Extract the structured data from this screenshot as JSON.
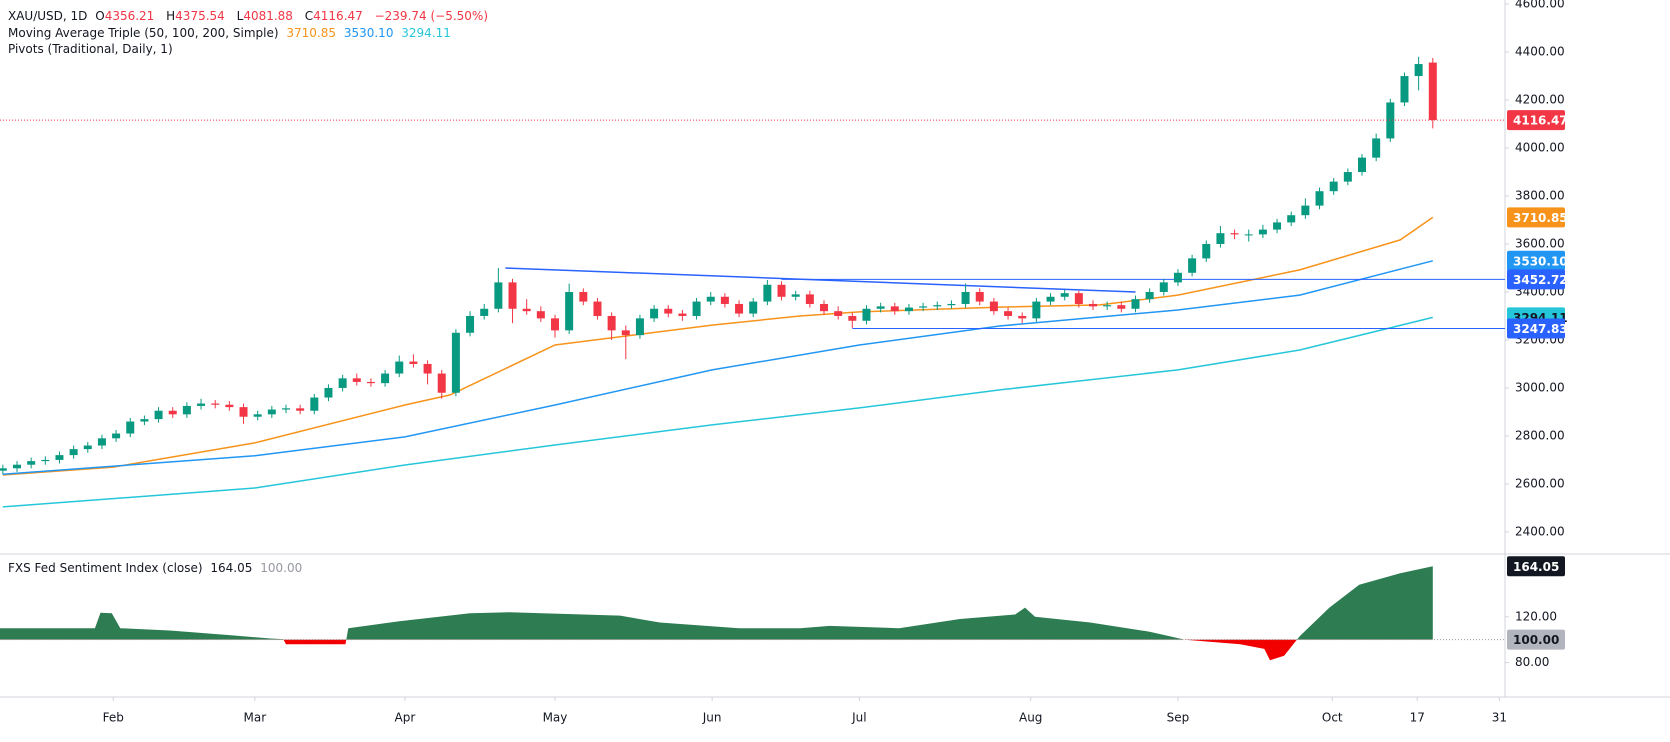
{
  "header": {
    "symbol": "XAU/USD, 1D",
    "ohlc": [
      {
        "label": "O",
        "value": "4356.21"
      },
      {
        "label": "H",
        "value": "4375.54"
      },
      {
        "label": "L",
        "value": "4081.88"
      },
      {
        "label": "C",
        "value": "4116.47"
      }
    ],
    "change": "−239.74 (−5.50%)",
    "ma_title": "Moving Average Triple (50, 100, 200, Simple)",
    "pivots_title": "Pivots (Traditional, Daily, 1)"
  },
  "chart_data": [
    {
      "type": "candlestick",
      "up_color": "#089981",
      "down_color": "#f23645",
      "xlim": [
        -0.2,
        106.1
      ],
      "xticks": [
        {
          "value": 7.8,
          "label": "Feb"
        },
        {
          "value": 17.8,
          "label": "Mar"
        },
        {
          "value": 28.4,
          "label": "Apr"
        },
        {
          "value": 39,
          "label": "May"
        },
        {
          "value": 50.1,
          "label": "Jun"
        },
        {
          "value": 60.5,
          "label": "Jul"
        },
        {
          "value": 72.6,
          "label": "Aug"
        },
        {
          "value": 83,
          "label": "Sep"
        },
        {
          "value": 93.9,
          "label": "Oct"
        },
        {
          "value": 99.9,
          "label": "17"
        },
        {
          "value": 105.7,
          "label": "31"
        }
      ],
      "ylim": [
        2312,
        4617
      ],
      "yticks": [
        {
          "value": 2400,
          "label": "2400.00"
        },
        {
          "value": 2600,
          "label": "2600.00"
        },
        {
          "value": 2800,
          "label": "2800.00"
        },
        {
          "value": 3000,
          "label": "3000.00"
        },
        {
          "value": 3200,
          "label": "3200.00"
        },
        {
          "value": 3400,
          "label": "3400.00"
        },
        {
          "value": 3600,
          "label": "3600.00"
        },
        {
          "value": 3800,
          "label": "3800.00"
        },
        {
          "value": 4000,
          "label": "4000.00"
        },
        {
          "value": 4200,
          "label": "4200.00"
        },
        {
          "value": 4400,
          "label": "4400.00"
        },
        {
          "value": 4600,
          "label": "4600.00"
        }
      ],
      "candles": [
        [
          2655,
          2680,
          2640,
          2665
        ],
        [
          2665,
          2695,
          2650,
          2680
        ],
        [
          2680,
          2710,
          2665,
          2695
        ],
        [
          2695,
          2715,
          2680,
          2700
        ],
        [
          2700,
          2735,
          2685,
          2720
        ],
        [
          2720,
          2760,
          2705,
          2745
        ],
        [
          2745,
          2775,
          2730,
          2760
        ],
        [
          2760,
          2805,
          2745,
          2790
        ],
        [
          2790,
          2825,
          2775,
          2810
        ],
        [
          2810,
          2875,
          2795,
          2860
        ],
        [
          2860,
          2885,
          2845,
          2870
        ],
        [
          2870,
          2920,
          2855,
          2905
        ],
        [
          2905,
          2920,
          2875,
          2890
        ],
        [
          2890,
          2940,
          2875,
          2925
        ],
        [
          2925,
          2955,
          2910,
          2935
        ],
        [
          2935,
          2950,
          2915,
          2930
        ],
        [
          2930,
          2945,
          2905,
          2920
        ],
        [
          2920,
          2935,
          2850,
          2880
        ],
        [
          2880,
          2905,
          2865,
          2890
        ],
        [
          2890,
          2925,
          2875,
          2910
        ],
        [
          2910,
          2930,
          2895,
          2915
        ],
        [
          2915,
          2930,
          2890,
          2905
        ],
        [
          2905,
          2975,
          2890,
          2960
        ],
        [
          2960,
          3015,
          2945,
          3000
        ],
        [
          3000,
          3055,
          2985,
          3040
        ],
        [
          3040,
          3060,
          3010,
          3025
        ],
        [
          3025,
          3040,
          3005,
          3020
        ],
        [
          3020,
          3075,
          3005,
          3060
        ],
        [
          3060,
          3135,
          3045,
          3110
        ],
        [
          3110,
          3140,
          3085,
          3100
        ],
        [
          3100,
          3115,
          3015,
          3060
        ],
        [
          3060,
          3075,
          2955,
          2980
        ],
        [
          2980,
          3245,
          2965,
          3230
        ],
        [
          3230,
          3320,
          3215,
          3300
        ],
        [
          3300,
          3350,
          3285,
          3330
        ],
        [
          3330,
          3500,
          3315,
          3440
        ],
        [
          3440,
          3455,
          3270,
          3330
        ],
        [
          3330,
          3370,
          3305,
          3320
        ],
        [
          3320,
          3340,
          3275,
          3290
        ],
        [
          3290,
          3305,
          3210,
          3240
        ],
        [
          3240,
          3435,
          3225,
          3400
        ],
        [
          3400,
          3415,
          3345,
          3360
        ],
        [
          3360,
          3375,
          3285,
          3300
        ],
        [
          3300,
          3315,
          3200,
          3240
        ],
        [
          3240,
          3260,
          3120,
          3220
        ],
        [
          3220,
          3305,
          3205,
          3290
        ],
        [
          3290,
          3345,
          3275,
          3330
        ],
        [
          3330,
          3345,
          3295,
          3310
        ],
        [
          3310,
          3325,
          3280,
          3300
        ],
        [
          3300,
          3375,
          3285,
          3360
        ],
        [
          3360,
          3400,
          3345,
          3380
        ],
        [
          3380,
          3395,
          3335,
          3350
        ],
        [
          3350,
          3365,
          3295,
          3310
        ],
        [
          3310,
          3375,
          3295,
          3360
        ],
        [
          3360,
          3450,
          3345,
          3430
        ],
        [
          3430,
          3445,
          3365,
          3380
        ],
        [
          3380,
          3405,
          3365,
          3390
        ],
        [
          3390,
          3405,
          3335,
          3350
        ],
        [
          3350,
          3365,
          3305,
          3320
        ],
        [
          3320,
          3340,
          3285,
          3300
        ],
        [
          3300,
          3315,
          3250,
          3280
        ],
        [
          3280,
          3345,
          3265,
          3330
        ],
        [
          3330,
          3355,
          3315,
          3340
        ],
        [
          3340,
          3355,
          3305,
          3320
        ],
        [
          3320,
          3350,
          3305,
          3335
        ],
        [
          3335,
          3355,
          3320,
          3340
        ],
        [
          3340,
          3360,
          3325,
          3345
        ],
        [
          3345,
          3365,
          3330,
          3350
        ],
        [
          3350,
          3435,
          3335,
          3400
        ],
        [
          3400,
          3415,
          3345,
          3360
        ],
        [
          3360,
          3375,
          3305,
          3320
        ],
        [
          3320,
          3335,
          3285,
          3300
        ],
        [
          3300,
          3315,
          3270,
          3290
        ],
        [
          3290,
          3375,
          3275,
          3360
        ],
        [
          3360,
          3395,
          3345,
          3380
        ],
        [
          3380,
          3410,
          3365,
          3395
        ],
        [
          3395,
          3405,
          3335,
          3350
        ],
        [
          3350,
          3365,
          3325,
          3340
        ],
        [
          3340,
          3360,
          3325,
          3345
        ],
        [
          3345,
          3360,
          3315,
          3330
        ],
        [
          3330,
          3385,
          3315,
          3370
        ],
        [
          3370,
          3415,
          3355,
          3400
        ],
        [
          3400,
          3455,
          3385,
          3440
        ],
        [
          3440,
          3495,
          3425,
          3480
        ],
        [
          3480,
          3555,
          3465,
          3540
        ],
        [
          3540,
          3615,
          3525,
          3600
        ],
        [
          3600,
          3675,
          3585,
          3645
        ],
        [
          3645,
          3660,
          3620,
          3640
        ],
        [
          3640,
          3660,
          3610,
          3640
        ],
        [
          3640,
          3680,
          3625,
          3660
        ],
        [
          3660,
          3705,
          3645,
          3690
        ],
        [
          3690,
          3735,
          3675,
          3720
        ],
        [
          3720,
          3790,
          3705,
          3760
        ],
        [
          3760,
          3835,
          3745,
          3820
        ],
        [
          3820,
          3875,
          3805,
          3860
        ],
        [
          3860,
          3915,
          3845,
          3900
        ],
        [
          3900,
          3975,
          3885,
          3960
        ],
        [
          3960,
          4060,
          3945,
          4040
        ],
        [
          4040,
          4205,
          4025,
          4190
        ],
        [
          4190,
          4315,
          4175,
          4300
        ],
        [
          4300,
          4380,
          4240,
          4350
        ],
        [
          4356.21,
          4375.54,
          4081.88,
          4116.47
        ]
      ],
      "moving_averages": [
        {
          "color": "#f7931a",
          "last_label": "3710.85",
          "label_color": "#ffffff",
          "x": [
            0,
            7.8,
            17.8,
            28.4,
            31.6,
            39,
            50.1,
            56.3,
            60.5,
            70.4,
            77.5,
            83,
            91.6,
            98.7,
            101
          ],
          "values": [
            2637,
            2670,
            2771,
            2929,
            2971,
            3179,
            3262,
            3300,
            3317,
            3337,
            3346,
            3387,
            3492,
            3617,
            3710.85
          ]
        },
        {
          "color": "#2196f3",
          "last_label": "3530.10",
          "label_color": "#ffffff",
          "x": [
            0,
            17.8,
            28.4,
            39,
            50.1,
            60.5,
            70.4,
            83,
            91.6,
            101
          ],
          "values": [
            2640,
            2717,
            2796,
            2929,
            3075,
            3179,
            3258,
            3325,
            3387,
            3530.1
          ]
        },
        {
          "color": "#26c6da",
          "last_label": "3294.11",
          "label_color": "#131722",
          "x": [
            0,
            17.8,
            28.4,
            39,
            50.1,
            60.5,
            70.4,
            83,
            91.6,
            101
          ],
          "values": [
            2504,
            2583,
            2679,
            2762,
            2846,
            2917,
            2992,
            3075,
            3158,
            3294.11
          ]
        }
      ],
      "trendlines": [
        {
          "color": "#2962ff",
          "x": [
            35.5,
            80
          ],
          "values": [
            3500,
            3400
          ]
        }
      ],
      "pivot_color": "#2962ff",
      "pivots": [
        {
          "value": 3452.72,
          "x_start": 55
        },
        {
          "value": 3247.83,
          "x_start": 60
        }
      ]
    },
    {
      "type": "area",
      "title": "FXS Fed Sentiment Index (close)",
      "up_color": "#2e7d52",
      "down_color": "#f20000",
      "baseline": {
        "value": 100,
        "label": "100.00"
      },
      "ylim": [
        50,
        173
      ],
      "yticks": [
        {
          "value": 80,
          "label": "80.00"
        },
        {
          "value": 120,
          "label": "120.00"
        }
      ],
      "x": [
        -0.2,
        6.5,
        6.9,
        7.7,
        8.3,
        11.8,
        16,
        18.9,
        19.8,
        20,
        24.2,
        24.4,
        28,
        33,
        35.8,
        43.6,
        46.4,
        52,
        56.3,
        58.4,
        63.3,
        67.6,
        71.5,
        72.2,
        72.9,
        76.8,
        81,
        83.5,
        87.4,
        89.1,
        89.5,
        90.5,
        91.6,
        93.7,
        95.8,
        98.7,
        101
      ],
      "values": [
        110,
        110,
        123.5,
        123,
        110,
        108,
        104,
        101,
        100.5,
        96,
        96,
        110,
        116,
        123,
        124,
        121,
        115,
        110,
        110,
        112,
        110,
        118,
        122,
        128,
        120,
        115,
        107,
        100,
        96,
        92,
        82,
        86,
        103,
        128,
        148,
        158,
        164.05
      ]
    }
  ]
}
